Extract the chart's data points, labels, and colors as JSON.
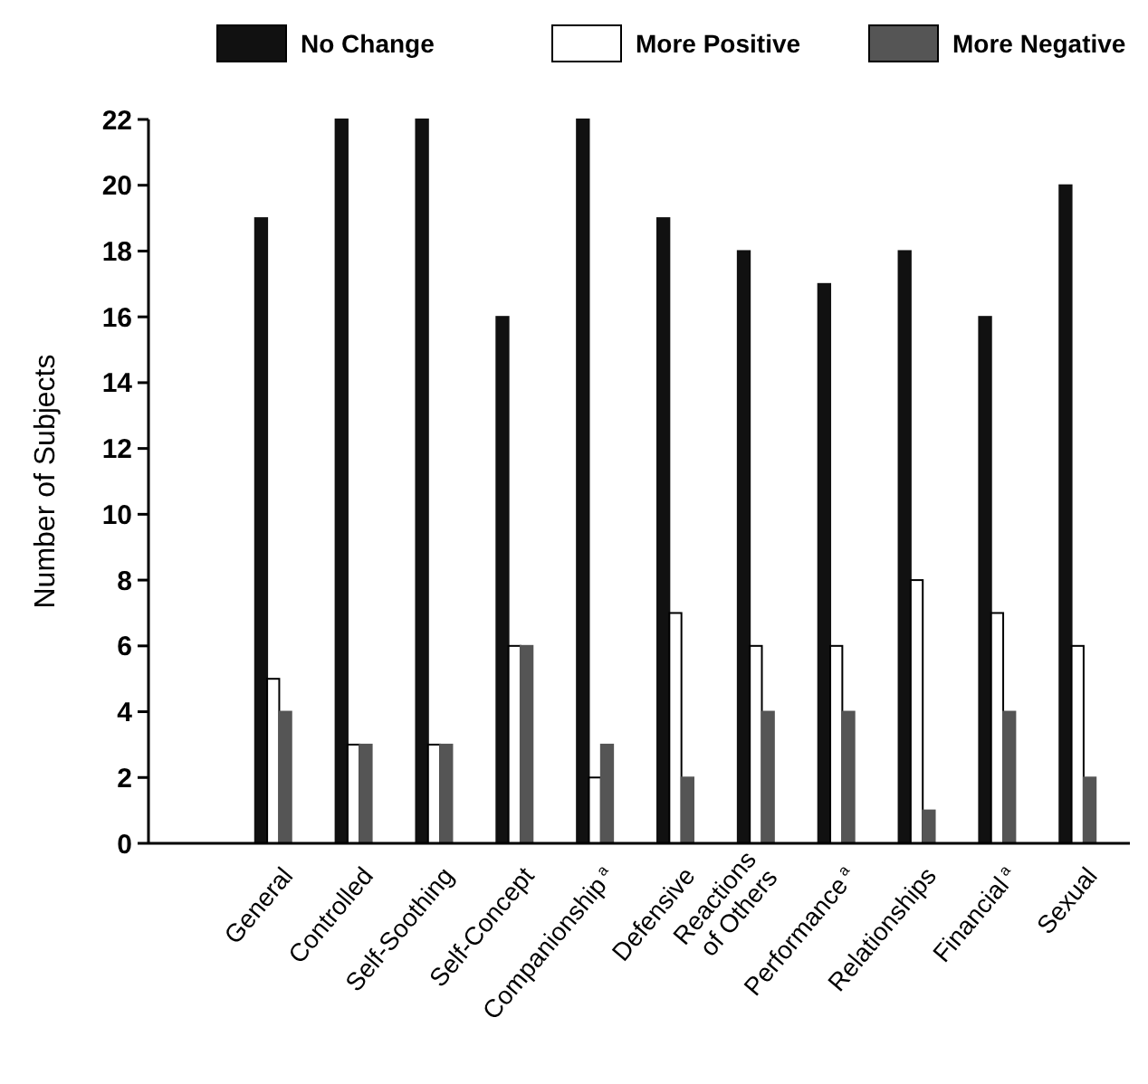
{
  "chart_data": {
    "type": "bar",
    "ylabel": "Number of Subjects",
    "categories": [
      "General",
      "Controlled",
      "Self-Soothing",
      "Self-Concept",
      "Companionship$^{a}$",
      "Defensive",
      "Reactions of Others",
      "Performance$^{a}$",
      "Relationships",
      "Financial$^{a}$",
      "Sexual"
    ],
    "series": [
      {
        "name": "No Change",
        "color": "#111111",
        "values": [
          19,
          22,
          22,
          16,
          22,
          19,
          18,
          17,
          18,
          16,
          20
        ]
      },
      {
        "name": "More Positive",
        "color": "#ffffff",
        "values": [
          5,
          3,
          3,
          6,
          2,
          7,
          6,
          6,
          8,
          7,
          6
        ]
      },
      {
        "name": "More Negative",
        "color": "#555555",
        "values": [
          4,
          3,
          3,
          6,
          3,
          2,
          4,
          4,
          1,
          4,
          2
        ]
      }
    ],
    "ylim": [
      0,
      22
    ],
    "yticks": [
      0,
      2,
      4,
      6,
      8,
      10,
      12,
      14,
      16,
      18,
      20,
      22
    ],
    "legend": "top",
    "grid": false
  }
}
